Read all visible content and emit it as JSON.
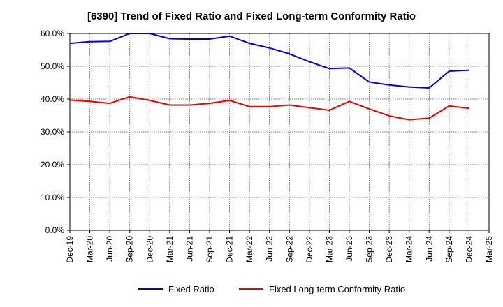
{
  "chart_data": {
    "type": "line",
    "title": "[6390]  Trend of Fixed Ratio and Fixed Long-term Conformity Ratio",
    "xlabel": "",
    "ylabel": "",
    "categories": [
      "Dec-19",
      "Mar-20",
      "Jun-20",
      "Sep-20",
      "Dec-20",
      "Mar-21",
      "Jun-21",
      "Sep-21",
      "Dec-21",
      "Mar-22",
      "Jun-22",
      "Sep-22",
      "Dec-22",
      "Mar-23",
      "Jun-23",
      "Sep-23",
      "Dec-23",
      "Mar-24",
      "Jun-24",
      "Sep-24",
      "Dec-24",
      "Mar-25"
    ],
    "ylim": [
      0,
      60
    ],
    "yticks": [
      0,
      10,
      20,
      30,
      40,
      50,
      60
    ],
    "ytick_labels": [
      "0.0%",
      "10.0%",
      "20.0%",
      "30.0%",
      "40.0%",
      "50.0%",
      "60.0%"
    ],
    "grid": true,
    "legend_position": "bottom",
    "series": [
      {
        "name": "Fixed Ratio",
        "color": "#0000dd",
        "values": [
          57.0,
          57.5,
          57.6,
          60.0,
          60.0,
          58.4,
          58.3,
          58.3,
          59.2,
          57.0,
          55.6,
          53.8,
          51.4,
          49.3,
          49.5,
          45.2,
          44.3,
          43.7,
          43.4,
          48.5,
          48.8,
          null
        ]
      },
      {
        "name": "Fixed Long-term Conformity Ratio",
        "color": "#ee0000",
        "values": [
          39.7,
          39.3,
          38.7,
          40.7,
          39.6,
          38.2,
          38.2,
          38.7,
          39.6,
          37.7,
          37.7,
          38.2,
          37.4,
          36.6,
          39.3,
          37.0,
          34.9,
          33.7,
          34.2,
          37.9,
          37.2,
          null
        ]
      }
    ]
  }
}
